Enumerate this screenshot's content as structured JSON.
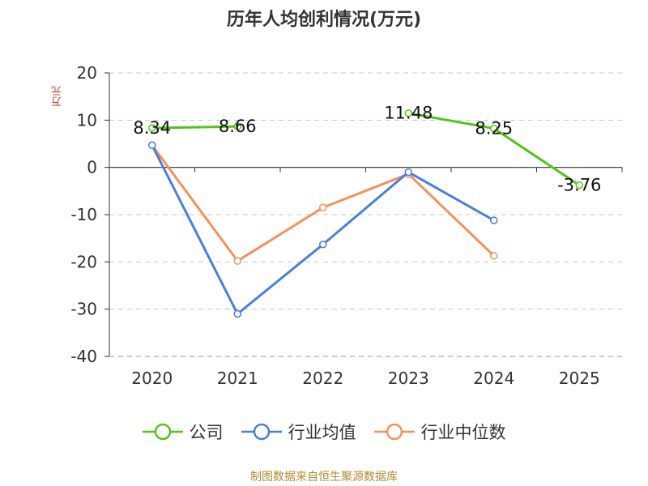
{
  "title": "历年人均创利情况(万元)",
  "source": "制图数据来自恒生聚源数据库",
  "chart_data": {
    "type": "line",
    "title": "历年人均创利情况(万元)",
    "ylabel": "万元",
    "xlabel": "",
    "categories": [
      "2020",
      "2021",
      "2022",
      "2023",
      "2024",
      "2025"
    ],
    "ylim": [
      -40,
      20
    ],
    "yticks": [
      20,
      10,
      0,
      -10,
      -20,
      -30,
      -40
    ],
    "grid": true,
    "legend_position": "bottom",
    "series": [
      {
        "name": "公司",
        "color": "#52c41a",
        "values": [
          8.34,
          8.66,
          null,
          11.48,
          8.25,
          -3.76
        ],
        "labels": [
          "8.34",
          "8.66",
          null,
          "11.48",
          "8.25",
          "-3.76"
        ]
      },
      {
        "name": "行业均值",
        "color": "#4a7fd9",
        "values": [
          4.7,
          -31.0,
          -16.3,
          -1.0,
          -11.2,
          null
        ]
      },
      {
        "name": "行业中位数",
        "color": "#f4915a",
        "values": [
          4.7,
          -19.8,
          -8.5,
          -1.4,
          -18.7,
          null
        ]
      }
    ]
  }
}
